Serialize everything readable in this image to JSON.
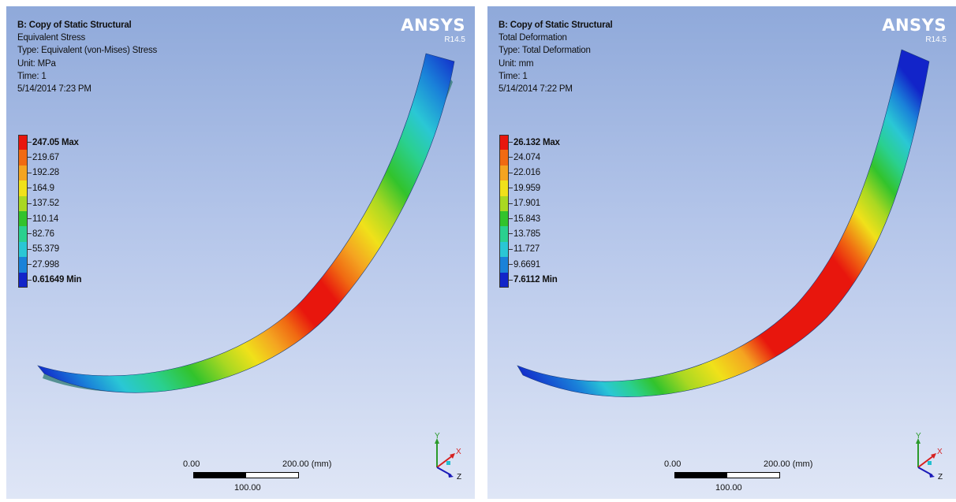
{
  "viewports": [
    {
      "info": {
        "title": "B: Copy of Static Structural",
        "result": "Equivalent Stress",
        "type": "Type: Equivalent (von-Mises) Stress",
        "unit": "Unit: MPa",
        "time": "Time: 1",
        "date": "5/14/2014 7:23 PM"
      },
      "brand": {
        "logo": "ANSYS",
        "version": "R14.5"
      },
      "legend": {
        "labels": [
          "247.05 Max",
          "219.67",
          "192.28",
          "164.9",
          "137.52",
          "110.14",
          "82.76",
          "55.379",
          "27.998",
          "0.61649 Min"
        ],
        "colors": [
          "#e8160d",
          "#f06a12",
          "#f4a421",
          "#f0e11a",
          "#a9d822",
          "#32c32c",
          "#2ad08f",
          "#2ac7d5",
          "#1a82d9",
          "#1224c9"
        ]
      },
      "scale": {
        "start": "0.00",
        "end": "200.00 (mm)",
        "mid": "100.00"
      },
      "triad": {
        "y": "Y",
        "x": "X",
        "z": "Z"
      }
    },
    {
      "info": {
        "title": "B: Copy of Static Structural",
        "result": "Total Deformation",
        "type": "Type: Total Deformation",
        "unit": "Unit: mm",
        "time": "Time: 1",
        "date": "5/14/2014 7:22 PM"
      },
      "brand": {
        "logo": "ANSYS",
        "version": "R14.5"
      },
      "legend": {
        "labels": [
          "26.132 Max",
          "24.074",
          "22.016",
          "19.959",
          "17.901",
          "15.843",
          "13.785",
          "11.727",
          "9.6691",
          "7.6112 Min"
        ],
        "colors": [
          "#e8160d",
          "#f06a12",
          "#f4a421",
          "#f0e11a",
          "#a9d822",
          "#32c32c",
          "#2ad08f",
          "#2ac7d5",
          "#1a82d9",
          "#1224c9"
        ]
      },
      "scale": {
        "start": "0.00",
        "end": "200.00 (mm)",
        "mid": "100.00"
      },
      "triad": {
        "y": "Y",
        "x": "X",
        "z": "Z"
      }
    }
  ]
}
